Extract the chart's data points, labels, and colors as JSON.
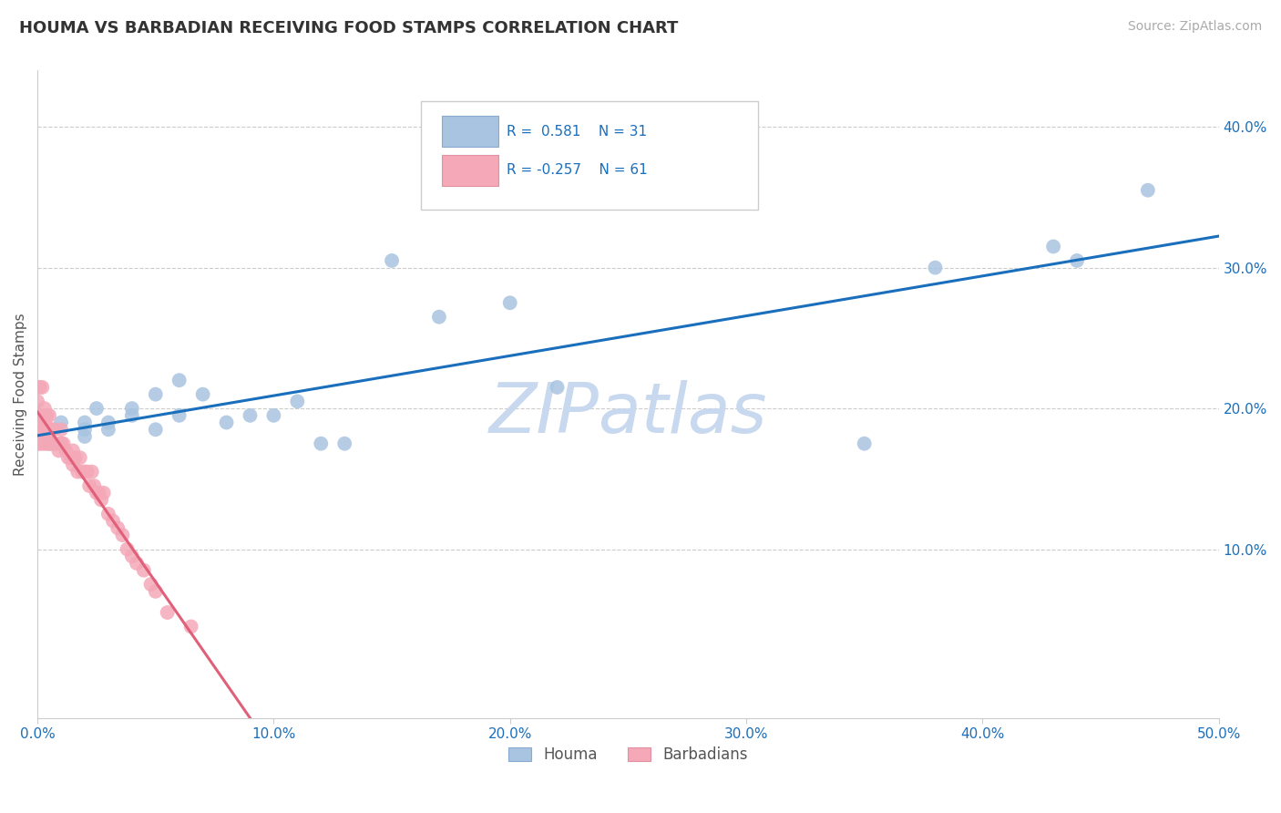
{
  "title": "HOUMA VS BARBADIAN RECEIVING FOOD STAMPS CORRELATION CHART",
  "source_text": "Source: ZipAtlas.com",
  "ylabel": "Receiving Food Stamps",
  "xlim": [
    0.0,
    0.5
  ],
  "ylim": [
    -0.02,
    0.44
  ],
  "xticks": [
    0.0,
    0.1,
    0.2,
    0.3,
    0.4,
    0.5
  ],
  "yticks_right": [
    0.1,
    0.2,
    0.3,
    0.4
  ],
  "houma_R": 0.581,
  "houma_N": 31,
  "barbadian_R": -0.257,
  "barbadian_N": 61,
  "houma_color": "#a8c4e0",
  "barbadian_color": "#f4a8b8",
  "houma_line_color": "#1a6fbd",
  "barbadian_line_color": "#e0607a",
  "watermark": "ZIPatlas",
  "watermark_color": "#c8d8ee",
  "background_color": "#ffffff",
  "grid_color": "#cccccc",
  "title_color": "#333333",
  "houma_x": [
    0.005,
    0.01,
    0.01,
    0.02,
    0.02,
    0.02,
    0.025,
    0.03,
    0.03,
    0.04,
    0.04,
    0.05,
    0.05,
    0.06,
    0.06,
    0.07,
    0.08,
    0.09,
    0.1,
    0.11,
    0.12,
    0.13,
    0.15,
    0.17,
    0.2,
    0.22,
    0.35,
    0.38,
    0.43,
    0.44,
    0.47
  ],
  "houma_y": [
    0.175,
    0.19,
    0.175,
    0.18,
    0.19,
    0.185,
    0.2,
    0.185,
    0.19,
    0.195,
    0.2,
    0.185,
    0.21,
    0.195,
    0.22,
    0.21,
    0.19,
    0.195,
    0.195,
    0.205,
    0.175,
    0.175,
    0.305,
    0.265,
    0.275,
    0.215,
    0.175,
    0.3,
    0.315,
    0.305,
    0.355
  ],
  "barbadian_x": [
    0.0,
    0.0,
    0.0,
    0.0,
    0.0,
    0.001,
    0.001,
    0.001,
    0.001,
    0.002,
    0.002,
    0.002,
    0.003,
    0.003,
    0.003,
    0.003,
    0.004,
    0.004,
    0.004,
    0.005,
    0.005,
    0.005,
    0.006,
    0.006,
    0.007,
    0.007,
    0.008,
    0.009,
    0.01,
    0.01,
    0.011,
    0.012,
    0.013,
    0.014,
    0.015,
    0.015,
    0.016,
    0.017,
    0.018,
    0.019,
    0.02,
    0.021,
    0.022,
    0.023,
    0.024,
    0.025,
    0.026,
    0.027,
    0.028,
    0.03,
    0.032,
    0.034,
    0.036,
    0.038,
    0.04,
    0.042,
    0.045,
    0.048,
    0.05,
    0.055,
    0.065
  ],
  "barbadian_y": [
    0.175,
    0.185,
    0.195,
    0.205,
    0.215,
    0.175,
    0.185,
    0.195,
    0.215,
    0.175,
    0.185,
    0.215,
    0.175,
    0.185,
    0.19,
    0.2,
    0.175,
    0.185,
    0.195,
    0.175,
    0.185,
    0.195,
    0.175,
    0.185,
    0.175,
    0.185,
    0.175,
    0.17,
    0.175,
    0.185,
    0.175,
    0.17,
    0.165,
    0.165,
    0.16,
    0.17,
    0.165,
    0.155,
    0.165,
    0.155,
    0.155,
    0.155,
    0.145,
    0.155,
    0.145,
    0.14,
    0.14,
    0.135,
    0.14,
    0.125,
    0.12,
    0.115,
    0.11,
    0.1,
    0.095,
    0.09,
    0.085,
    0.075,
    0.07,
    0.055,
    0.045
  ],
  "houma_legend_color": "#a8c4e0",
  "barbadian_legend_color": "#f4a8b8"
}
